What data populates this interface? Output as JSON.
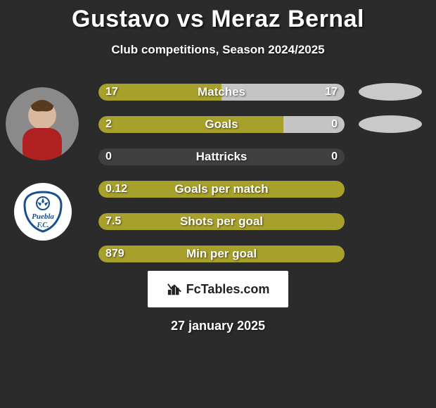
{
  "title": "Gustavo vs Meraz Bernal",
  "subtitle": "Club competitions, Season 2024/2025",
  "colors": {
    "left": "#a7a02b",
    "right": "#c4c4c4",
    "track": "#404040",
    "ellipse1": "#c9c9c9",
    "ellipse2": "#c9c9c9",
    "bg": "#2b2b2b"
  },
  "rows": [
    {
      "label": "Matches",
      "left": "17",
      "right": "17",
      "left_pct": 50,
      "right_pct": 50,
      "ellipse": true
    },
    {
      "label": "Goals",
      "left": "2",
      "right": "0",
      "left_pct": 75,
      "right_pct": 25,
      "ellipse": true
    },
    {
      "label": "Hattricks",
      "left": "0",
      "right": "0",
      "left_pct": 0,
      "right_pct": 0
    },
    {
      "label": "Goals per match",
      "left": "0.12",
      "right": "",
      "left_pct": 100,
      "right_pct": 0
    },
    {
      "label": "Shots per goal",
      "left": "7.5",
      "right": "",
      "left_pct": 100,
      "right_pct": 0
    },
    {
      "label": "Min per goal",
      "left": "879",
      "right": "",
      "left_pct": 100,
      "right_pct": 0
    }
  ],
  "badge": {
    "text": "FcTables.com"
  },
  "date": "27 january 2025",
  "team_logo": {
    "label": "Puebla F.C.",
    "primary": "#1a4f8f",
    "secondary": "#ffffff"
  }
}
